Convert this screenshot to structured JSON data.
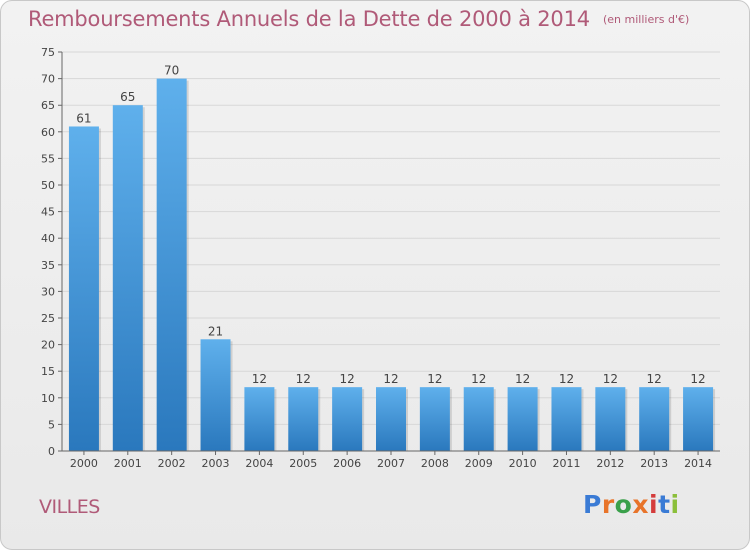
{
  "header": {
    "title": "Remboursements Annuels de la Dette de 2000 à 2014",
    "unit": "(en milliers d'€)"
  },
  "footer": {
    "commune": "VILLES",
    "logo_text": "Proxiti"
  },
  "colors": {
    "title": "#b05a78",
    "bar_top": "#5fb0ec",
    "bar_bottom": "#2a78bd",
    "grid": "#d7d7d7",
    "axis": "#666666",
    "logo": [
      "#3a7bd5",
      "#e8742a",
      "#3aa04a",
      "#e8742a",
      "#d43c3c",
      "#3a7bd5",
      "#8bbf3a"
    ]
  },
  "chart_data": {
    "type": "bar",
    "title": "Remboursements Annuels de la Dette de 2000 à 2014",
    "subtitle": "(en milliers d'€)",
    "xlabel": "",
    "ylabel": "",
    "categories": [
      "2000",
      "2001",
      "2002",
      "2003",
      "2004",
      "2005",
      "2006",
      "2007",
      "2008",
      "2009",
      "2010",
      "2011",
      "2012",
      "2013",
      "2014"
    ],
    "values": [
      61,
      65,
      70,
      21,
      12,
      12,
      12,
      12,
      12,
      12,
      12,
      12,
      12,
      12,
      12
    ],
    "data_labels": [
      "61",
      "65",
      "70",
      "21",
      "12",
      "12",
      "12",
      "12",
      "12",
      "12",
      "12",
      "12",
      "12",
      "12",
      "12"
    ],
    "ylim": [
      0,
      75
    ],
    "yticks": [
      0,
      5,
      10,
      15,
      20,
      25,
      30,
      35,
      40,
      45,
      50,
      55,
      60,
      65,
      70,
      75
    ],
    "grid": true,
    "legend": "none"
  }
}
